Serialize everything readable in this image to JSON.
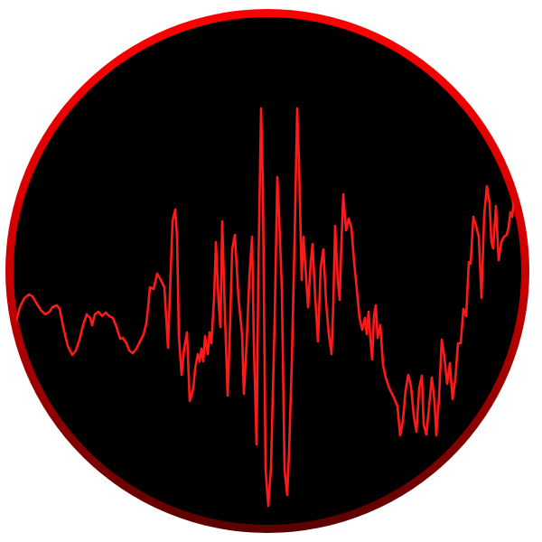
{
  "icon": {
    "name": "waveform-icon",
    "colors": {
      "background": "#ffffff",
      "disc_fill": "#000000",
      "ring_top": "#ff0000",
      "ring_bottom": "#5a0000",
      "waveform_stroke": "#ff1a1a"
    }
  }
}
